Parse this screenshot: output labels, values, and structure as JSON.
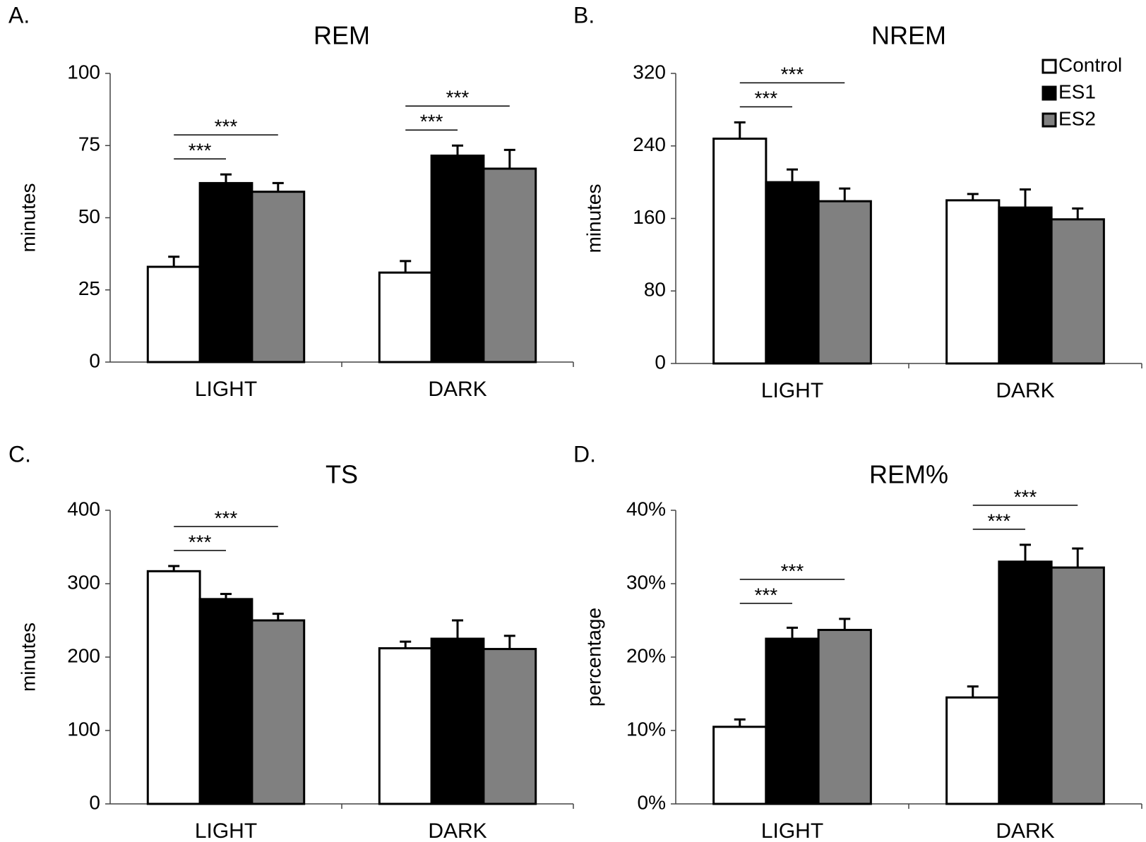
{
  "chart_data": [
    {
      "type": "bar",
      "panel": "A.",
      "title": "REM",
      "y_label": "minutes",
      "categories": [
        "LIGHT",
        "DARK"
      ],
      "series": [
        {
          "name": "Control",
          "color": "#ffffff",
          "values": [
            33,
            31
          ],
          "errors": [
            3.5,
            4
          ]
        },
        {
          "name": "ES1",
          "color": "#000000",
          "values": [
            62,
            71.5
          ],
          "errors": [
            3,
            3.5
          ]
        },
        {
          "name": "ES2",
          "color": "#808080",
          "values": [
            59,
            67
          ],
          "errors": [
            3,
            6.5
          ]
        }
      ],
      "ylim": [
        0,
        100
      ],
      "yticks": [
        0,
        25,
        50,
        75,
        100
      ],
      "annotations": [
        {
          "text": "***",
          "category": "LIGHT",
          "series": [
            "Control",
            "ES1"
          ]
        },
        {
          "text": "***",
          "category": "LIGHT",
          "series": [
            "Control",
            "ES2"
          ]
        },
        {
          "text": "***",
          "category": "DARK",
          "series": [
            "Control",
            "ES1"
          ]
        },
        {
          "text": "***",
          "category": "DARK",
          "series": [
            "Control",
            "ES2"
          ]
        }
      ]
    },
    {
      "type": "bar",
      "panel": "B.",
      "title": "NREM",
      "y_label": "minutes",
      "categories": [
        "LIGHT",
        "DARK"
      ],
      "series": [
        {
          "name": "Control",
          "color": "#ffffff",
          "values": [
            248,
            180
          ],
          "errors": [
            18,
            7
          ]
        },
        {
          "name": "ES1",
          "color": "#000000",
          "values": [
            200,
            172
          ],
          "errors": [
            14,
            20
          ]
        },
        {
          "name": "ES2",
          "color": "#808080",
          "values": [
            179,
            159
          ],
          "errors": [
            14,
            12
          ]
        }
      ],
      "ylim": [
        0,
        320
      ],
      "yticks": [
        0,
        80,
        160,
        240,
        320
      ],
      "legend": "upper right",
      "annotations": [
        {
          "text": "***",
          "category": "LIGHT",
          "series": [
            "Control",
            "ES1"
          ]
        },
        {
          "text": "***",
          "category": "LIGHT",
          "series": [
            "Control",
            "ES2"
          ]
        }
      ]
    },
    {
      "type": "bar",
      "panel": "C.",
      "title": "TS",
      "y_label": "minutes",
      "categories": [
        "LIGHT",
        "DARK"
      ],
      "series": [
        {
          "name": "Control",
          "color": "#ffffff",
          "values": [
            317,
            212
          ],
          "errors": [
            7,
            9
          ]
        },
        {
          "name": "ES1",
          "color": "#000000",
          "values": [
            279,
            225
          ],
          "errors": [
            7,
            25
          ]
        },
        {
          "name": "ES2",
          "color": "#808080",
          "values": [
            250,
            211
          ],
          "errors": [
            9,
            18
          ]
        }
      ],
      "ylim": [
        0,
        400
      ],
      "yticks": [
        0,
        100,
        200,
        300,
        400
      ],
      "annotations": [
        {
          "text": "***",
          "category": "LIGHT",
          "series": [
            "Control",
            "ES1"
          ]
        },
        {
          "text": "***",
          "category": "LIGHT",
          "series": [
            "Control",
            "ES2"
          ]
        }
      ]
    },
    {
      "type": "bar",
      "panel": "D.",
      "title": "REM%",
      "y_label": "percentage",
      "categories": [
        "LIGHT",
        "DARK"
      ],
      "series": [
        {
          "name": "Control",
          "color": "#ffffff",
          "values": [
            10.5,
            14.5
          ],
          "errors": [
            1,
            1.5
          ]
        },
        {
          "name": "ES1",
          "color": "#000000",
          "values": [
            22.5,
            33
          ],
          "errors": [
            1.5,
            2.3
          ]
        },
        {
          "name": "ES2",
          "color": "#808080",
          "values": [
            23.7,
            32.2
          ],
          "errors": [
            1.5,
            2.6
          ]
        }
      ],
      "ylim": [
        0,
        40
      ],
      "yticks": [
        {
          "value": 0,
          "label": "0%"
        },
        {
          "value": 10,
          "label": "10%"
        },
        {
          "value": 20,
          "label": "20%"
        },
        {
          "value": 30,
          "label": "30%"
        },
        {
          "value": 40,
          "label": "40%"
        }
      ],
      "annotations": [
        {
          "text": "***",
          "category": "LIGHT",
          "series": [
            "Control",
            "ES1"
          ]
        },
        {
          "text": "***",
          "category": "LIGHT",
          "series": [
            "Control",
            "ES2"
          ]
        },
        {
          "text": "***",
          "category": "DARK",
          "series": [
            "Control",
            "ES1"
          ]
        },
        {
          "text": "***",
          "category": "DARK",
          "series": [
            "Control",
            "ES2"
          ]
        }
      ]
    }
  ]
}
